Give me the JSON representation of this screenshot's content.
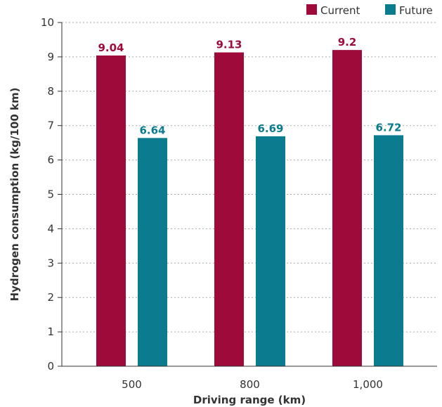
{
  "chart_data": {
    "type": "bar",
    "categories": [
      "500",
      "800",
      "1,000"
    ],
    "series": [
      {
        "name": "Current",
        "values": [
          9.04,
          9.13,
          9.2
        ],
        "labels": [
          "9.04",
          "9.13",
          "9.2"
        ],
        "color": "#9e0b3a"
      },
      {
        "name": "Future",
        "values": [
          6.64,
          6.69,
          6.72
        ],
        "labels": [
          "6.64",
          "6.69",
          "6.72"
        ],
        "color": "#0b7b8f"
      }
    ],
    "xlabel": "Driving range (km)",
    "ylabel": "Hydrogen consumption (kg/100 km)",
    "ylim": [
      0,
      10
    ],
    "yticks": [
      0,
      1,
      2,
      3,
      4,
      5,
      6,
      7,
      8,
      9,
      10
    ],
    "grid": true,
    "legend": "top-right"
  }
}
